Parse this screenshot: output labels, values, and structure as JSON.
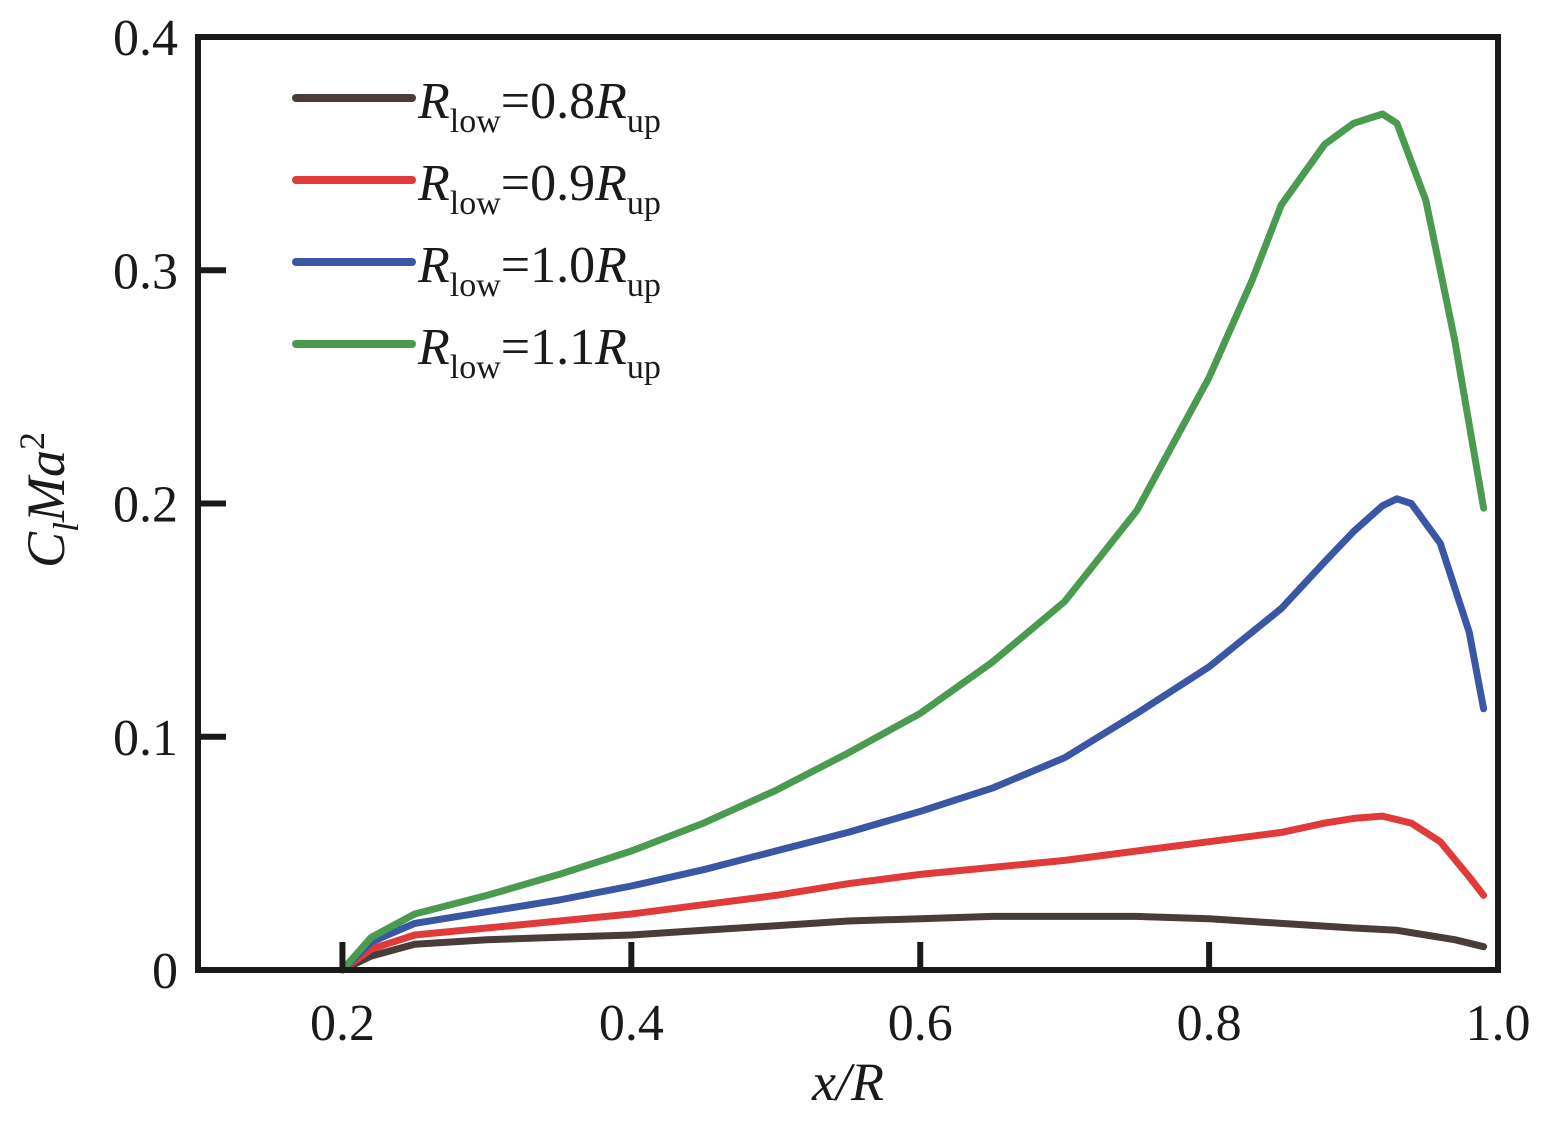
{
  "chart_data": {
    "type": "line",
    "title": "",
    "xlabel": "x/R",
    "ylabel": {
      "base": "C",
      "sub": "l",
      "mid": "Ma",
      "sup": "2"
    },
    "xlim": [
      0.1,
      1.0
    ],
    "ylim": [
      0,
      0.4
    ],
    "x_ticks": [
      0.2,
      0.4,
      0.6,
      0.8,
      1.0
    ],
    "x_tick_labels": [
      "0.2",
      "0.4",
      "0.6",
      "0.8",
      "1.0"
    ],
    "y_ticks": [
      0,
      0.1,
      0.2,
      0.3,
      0.4
    ],
    "y_tick_labels": [
      "0",
      "0.1",
      "0.2",
      "0.3",
      "0.4"
    ],
    "grid": false,
    "legend_position": "top-left",
    "series": [
      {
        "name": "R_low=0.8R_up",
        "legend": {
          "r": "R",
          "low": "low",
          "eq": "=0.8",
          "r2": "R",
          "up": "up"
        },
        "color": "#4a3d39",
        "x": [
          0.2,
          0.22,
          0.25,
          0.3,
          0.35,
          0.4,
          0.45,
          0.5,
          0.55,
          0.6,
          0.65,
          0.7,
          0.75,
          0.8,
          0.85,
          0.9,
          0.93,
          0.95,
          0.97,
          0.99
        ],
        "y": [
          0.0,
          0.006,
          0.011,
          0.013,
          0.014,
          0.015,
          0.017,
          0.019,
          0.021,
          0.022,
          0.023,
          0.023,
          0.023,
          0.022,
          0.02,
          0.018,
          0.017,
          0.015,
          0.013,
          0.01
        ]
      },
      {
        "name": "R_low=0.9R_up",
        "legend": {
          "r": "R",
          "low": "low",
          "eq": "=0.9",
          "r2": "R",
          "up": "up"
        },
        "color": "#e03a3a",
        "x": [
          0.2,
          0.22,
          0.25,
          0.3,
          0.35,
          0.4,
          0.45,
          0.5,
          0.55,
          0.6,
          0.65,
          0.7,
          0.75,
          0.8,
          0.85,
          0.88,
          0.9,
          0.92,
          0.94,
          0.96,
          0.98,
          0.99
        ],
        "y": [
          0.0,
          0.009,
          0.015,
          0.018,
          0.021,
          0.024,
          0.028,
          0.032,
          0.037,
          0.041,
          0.044,
          0.047,
          0.051,
          0.055,
          0.059,
          0.063,
          0.065,
          0.066,
          0.063,
          0.055,
          0.04,
          0.032
        ]
      },
      {
        "name": "R_low=1.0R_up",
        "legend": {
          "r": "R",
          "low": "low",
          "eq": "=1.0",
          "r2": "R",
          "up": "up"
        },
        "color": "#3a57a6",
        "x": [
          0.2,
          0.22,
          0.25,
          0.3,
          0.35,
          0.4,
          0.45,
          0.5,
          0.55,
          0.6,
          0.65,
          0.7,
          0.75,
          0.8,
          0.85,
          0.88,
          0.9,
          0.92,
          0.93,
          0.94,
          0.96,
          0.98,
          0.99
        ],
        "y": [
          0.0,
          0.012,
          0.02,
          0.025,
          0.03,
          0.036,
          0.043,
          0.051,
          0.059,
          0.068,
          0.078,
          0.091,
          0.11,
          0.13,
          0.155,
          0.175,
          0.188,
          0.199,
          0.202,
          0.2,
          0.183,
          0.145,
          0.112
        ]
      },
      {
        "name": "R_low=1.1R_up",
        "legend": {
          "r": "R",
          "low": "low",
          "eq": "=1.1",
          "r2": "R",
          "up": "up"
        },
        "color": "#4a9a4f",
        "x": [
          0.2,
          0.22,
          0.25,
          0.3,
          0.35,
          0.4,
          0.45,
          0.5,
          0.55,
          0.6,
          0.65,
          0.7,
          0.75,
          0.8,
          0.83,
          0.85,
          0.88,
          0.9,
          0.92,
          0.93,
          0.95,
          0.97,
          0.99
        ],
        "y": [
          0.0,
          0.014,
          0.024,
          0.032,
          0.041,
          0.051,
          0.063,
          0.077,
          0.093,
          0.11,
          0.132,
          0.158,
          0.197,
          0.254,
          0.296,
          0.328,
          0.354,
          0.363,
          0.367,
          0.363,
          0.33,
          0.27,
          0.198
        ]
      }
    ]
  }
}
